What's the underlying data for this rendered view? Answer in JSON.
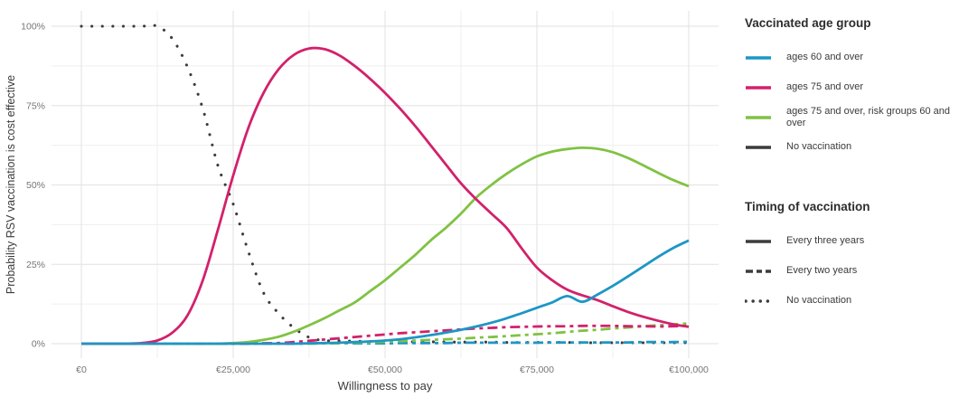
{
  "legend": {
    "age_group": {
      "title": "Vaccinated age group",
      "items": [
        {
          "label": "ages 60 and over",
          "color": "#1d96c5"
        },
        {
          "label": "ages 75 and over",
          "color": "#d2216b"
        },
        {
          "label": "ages 75 and over, risk groups 60 and over",
          "color": "#80c243"
        },
        {
          "label": "No vaccination",
          "color": "#3c3c3c"
        }
      ]
    },
    "timing": {
      "title": "Timing of vaccination",
      "items": [
        {
          "label": "Every three years",
          "style": "solid"
        },
        {
          "label": "Every two years",
          "style": "twodash"
        },
        {
          "label": "No vaccination",
          "style": "dotted"
        }
      ]
    }
  },
  "chart_data": {
    "type": "line",
    "title": "",
    "xlabel": "Willingness to pay",
    "ylabel": "Probability RSV vaccination is cost effective",
    "xlim": [
      0,
      100000
    ],
    "ylim": [
      0,
      100
    ],
    "grid": {
      "major": true,
      "minor": true,
      "legend_position": "right"
    },
    "x_ticks": [
      {
        "value": 0,
        "label": "€0"
      },
      {
        "value": 25000,
        "label": "€25,000"
      },
      {
        "value": 50000,
        "label": "€50,000"
      },
      {
        "value": 75000,
        "label": "€75,000"
      },
      {
        "value": 100000,
        "label": "€100,000"
      }
    ],
    "y_ticks": [
      {
        "value": 0,
        "label": "0%"
      },
      {
        "value": 25,
        "label": "25%"
      },
      {
        "value": 50,
        "label": "50%"
      },
      {
        "value": 75,
        "label": "75%"
      },
      {
        "value": 100,
        "label": "100%"
      }
    ],
    "x": [
      0,
      2500,
      5000,
      7500,
      10000,
      12500,
      15000,
      17500,
      20000,
      22500,
      25000,
      27500,
      30000,
      32500,
      35000,
      37500,
      40000,
      42500,
      45000,
      47500,
      50000,
      52500,
      55000,
      57500,
      60000,
      62500,
      65000,
      67500,
      70000,
      72500,
      75000,
      77500,
      80000,
      82500,
      85000,
      87500,
      90000,
      92500,
      95000,
      97500,
      100000
    ],
    "series": [
      {
        "name": "No vaccination",
        "age_group": "No vaccination",
        "timing": "No vaccination",
        "color": "#3c3c3c",
        "line": "dotted",
        "values": [
          100,
          100,
          100,
          100,
          100,
          100,
          96,
          87,
          74,
          56,
          44,
          29,
          16,
          9.5,
          5,
          2,
          1,
          0.9,
          0.8,
          0.7,
          0.7,
          0.6,
          0.6,
          0.6,
          0.5,
          0.5,
          0.5,
          0.5,
          0.4,
          0.4,
          0.4,
          0.4,
          0.4,
          0.3,
          0.3,
          0.3,
          0.3,
          0.3,
          0.3,
          0.3,
          0.3
        ]
      },
      {
        "name": "ages 60 and over — every two years",
        "age_group": "ages 60 and over",
        "timing": "Every two years",
        "color": "#1d96c5",
        "line": "twodash",
        "values": [
          0,
          0,
          0,
          0,
          0,
          0,
          0,
          0,
          0,
          0,
          0,
          0.1,
          0.1,
          0.1,
          0.1,
          0.1,
          0.1,
          0.1,
          0.1,
          0.1,
          0.1,
          0.2,
          0.2,
          0.2,
          0.2,
          0.3,
          0.3,
          0.3,
          0.3,
          0.3,
          0.3,
          0.4,
          0.4,
          0.4,
          0.4,
          0.4,
          0.4,
          0.5,
          0.5,
          0.5,
          0.6
        ]
      },
      {
        "name": "ages 75 and over, risk groups 60 and over — every two years",
        "age_group": "ages 75 and over, risk groups 60 and over",
        "timing": "Every two years",
        "color": "#80c243",
        "line": "twodash",
        "values": [
          0,
          0,
          0,
          0,
          0,
          0,
          0,
          0,
          0,
          0,
          0,
          0,
          0,
          0,
          0,
          0,
          0.1,
          0.1,
          0.3,
          0.4,
          0.6,
          0.8,
          1,
          1.2,
          1.4,
          1.6,
          1.9,
          2.1,
          2.4,
          2.7,
          3,
          3.3,
          3.7,
          4.1,
          4.4,
          4.8,
          5.1,
          5.5,
          5.8,
          6.1,
          6.4
        ]
      },
      {
        "name": "ages 75 and over — every two years",
        "age_group": "ages 75 and over",
        "timing": "Every two years",
        "color": "#d2216b",
        "line": "twodash",
        "values": [
          0,
          0,
          0,
          0,
          0,
          0,
          0,
          0,
          0,
          0,
          0,
          0,
          0.1,
          0.2,
          0.5,
          0.9,
          1.3,
          1.7,
          2.1,
          2.5,
          2.9,
          3.3,
          3.6,
          3.9,
          4.2,
          4.5,
          4.8,
          5,
          5.2,
          5.3,
          5.4,
          5.5,
          5.5,
          5.6,
          5.6,
          5.6,
          5.5,
          5.5,
          5.4,
          5.5,
          5.6
        ]
      },
      {
        "name": "ages 75 and over, risk groups 60 and over — every three years",
        "age_group": "ages 75 and over, risk groups 60 and over",
        "timing": "Every three years",
        "color": "#80c243",
        "line": "solid",
        "values": [
          0,
          0,
          0,
          0,
          0,
          0,
          0,
          0,
          0,
          0,
          0.2,
          0.5,
          1.2,
          2.2,
          3.8,
          5.8,
          8,
          10.5,
          13,
          16.5,
          20,
          24,
          28,
          32.5,
          36.5,
          41,
          46,
          50,
          53.5,
          56.5,
          59,
          60.5,
          61.3,
          61.7,
          61.4,
          60.3,
          58.5,
          56.2,
          53.8,
          51.5,
          49.6
        ]
      },
      {
        "name": "ages 75 and over — every three years",
        "age_group": "ages 75 and over",
        "timing": "Every three years",
        "color": "#d2216b",
        "line": "solid",
        "values": [
          0,
          0,
          0,
          0,
          0.2,
          1,
          3.5,
          9,
          20,
          36,
          53,
          68,
          79,
          86.5,
          91,
          93,
          92.8,
          90.8,
          87.5,
          83.5,
          79,
          74,
          68.5,
          62.5,
          56.5,
          50.5,
          45.5,
          41,
          36.5,
          30,
          24,
          20,
          17,
          15.2,
          13.7,
          11.8,
          10,
          8.5,
          7.2,
          6.1,
          5.3
        ]
      },
      {
        "name": "ages 60 and over — every three years",
        "age_group": "ages 60 and over",
        "timing": "Every three years",
        "color": "#1d96c5",
        "line": "solid",
        "values": [
          0,
          0,
          0,
          0,
          0,
          0,
          0,
          0,
          0,
          0,
          0,
          0,
          0,
          0,
          0,
          0.1,
          0.2,
          0.3,
          0.5,
          0.7,
          1,
          1.4,
          2,
          2.7,
          3.5,
          4.4,
          5.4,
          6.6,
          8,
          9.6,
          11.3,
          13,
          15,
          13.2,
          15.5,
          18.2,
          21.2,
          24.3,
          27.4,
          30.2,
          32.5
        ]
      }
    ],
    "appearance": {
      "grid_major_color": "#e2e2e2",
      "grid_minor_color": "#efefef",
      "tick_text_color": "#757575",
      "axis_title_color": "#3b3b3b",
      "background": "#ffffff"
    }
  }
}
